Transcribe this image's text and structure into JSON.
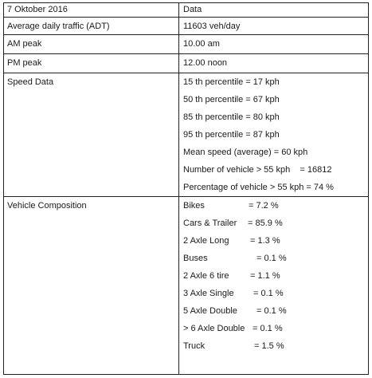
{
  "header": {
    "left": "7 Oktober 2016",
    "right": "Data"
  },
  "adt": {
    "label": "Average daily traffic (ADT)",
    "value": "11603 veh/day"
  },
  "am_peak": {
    "label": "AM peak",
    "value": "10.00 am"
  },
  "pm_peak": {
    "label": "PM peak",
    "value": "12.00 noon"
  },
  "speed": {
    "label": "Speed Data",
    "lines": [
      "15 th percentile = 17 kph",
      "50 th percentile = 67 kph",
      "85 th percentile = 80 kph",
      "95 th percentile = 87 kph",
      "Mean speed (average) = 60 kph",
      "Number of vehicle > 55 kph    = 16812",
      "Percentage of vehicle > 55 kph = 74 %"
    ]
  },
  "composition": {
    "label": "Vehicle Composition",
    "items": [
      {
        "name": "Bikes",
        "value": "= 7.2 %"
      },
      {
        "name": "Cars & Trailer",
        "value": "= 85.9 %"
      },
      {
        "name": "2 Axle Long",
        "value": "= 1.3 %"
      },
      {
        "name": "Buses",
        "value": "= 0.1 %"
      },
      {
        "name": "2 Axle 6 tire",
        "value": "= 1.1 %"
      },
      {
        "name": "3 Axle Single",
        "value": "= 0.1 %"
      },
      {
        "name": "5 Axle Double",
        "value": "= 0.1 %"
      },
      {
        "name": "> 6 Axle Double",
        "value": "= 0.1 %"
      },
      {
        "name": "Truck",
        "value": "= 1.5 %"
      }
    ]
  }
}
